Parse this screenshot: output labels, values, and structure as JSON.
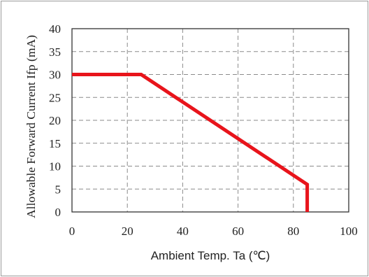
{
  "chart_data": {
    "type": "line",
    "xlabel": "Ambient Temp. Ta (℃)",
    "ylabel": "Allowable Forward Current Ifp (mA)",
    "xlim": [
      0,
      100
    ],
    "ylim": [
      0,
      40
    ],
    "x_ticks": [
      0,
      20,
      40,
      60,
      80,
      100
    ],
    "y_ticks": [
      0,
      5,
      10,
      15,
      20,
      25,
      30,
      35,
      40
    ],
    "grid": true,
    "series": [
      {
        "x": [
          0,
          25,
          85,
          85
        ],
        "y": [
          30,
          30,
          6,
          0
        ],
        "color": "#e8141b"
      }
    ]
  }
}
